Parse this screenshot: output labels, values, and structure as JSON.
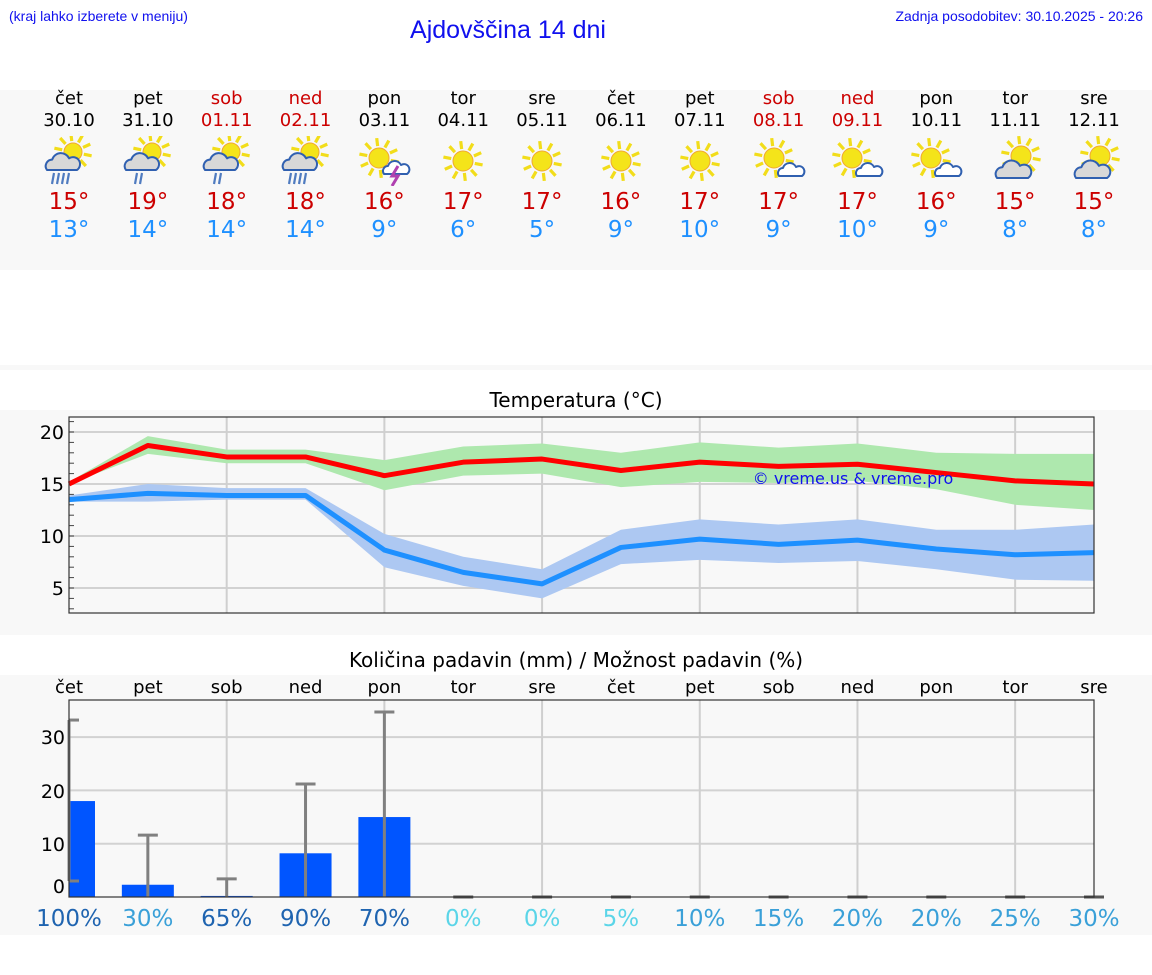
{
  "header": {
    "hint": "(kraj lahko izberete v meniju)",
    "title": "Ajdovščina 14 dni",
    "updated": "Zadnja posodobitev: 30.10.2025 - 20:26"
  },
  "days": [
    {
      "name": "čet",
      "date": "30.10",
      "weekend": false,
      "icon": "partly-sunny-heavy-rain-icon",
      "max": "15°",
      "min": "13°"
    },
    {
      "name": "pet",
      "date": "31.10",
      "weekend": false,
      "icon": "partly-sunny-light-rain-icon",
      "max": "19°",
      "min": "14°"
    },
    {
      "name": "sob",
      "date": "01.11",
      "weekend": true,
      "icon": "partly-sunny-light-rain-icon",
      "max": "18°",
      "min": "14°"
    },
    {
      "name": "ned",
      "date": "02.11",
      "weekend": true,
      "icon": "partly-sunny-heavy-rain-icon",
      "max": "18°",
      "min": "14°"
    },
    {
      "name": "pon",
      "date": "03.11",
      "weekend": false,
      "icon": "sun-thunderstorm-icon",
      "max": "16°",
      "min": "9°"
    },
    {
      "name": "tor",
      "date": "04.11",
      "weekend": false,
      "icon": "sun-icon",
      "max": "17°",
      "min": "6°"
    },
    {
      "name": "sre",
      "date": "05.11",
      "weekend": false,
      "icon": "sun-icon",
      "max": "17°",
      "min": "5°"
    },
    {
      "name": "čet",
      "date": "06.11",
      "weekend": false,
      "icon": "sun-icon",
      "max": "16°",
      "min": "9°"
    },
    {
      "name": "pet",
      "date": "07.11",
      "weekend": false,
      "icon": "sun-icon",
      "max": "17°",
      "min": "10°"
    },
    {
      "name": "sob",
      "date": "08.11",
      "weekend": true,
      "icon": "sun-small-cloud-icon",
      "max": "17°",
      "min": "9°"
    },
    {
      "name": "ned",
      "date": "09.11",
      "weekend": true,
      "icon": "sun-small-cloud-icon",
      "max": "17°",
      "min": "10°"
    },
    {
      "name": "pon",
      "date": "10.11",
      "weekend": false,
      "icon": "sun-small-cloud-icon",
      "max": "16°",
      "min": "9°"
    },
    {
      "name": "tor",
      "date": "11.11",
      "weekend": false,
      "icon": "partly-cloudy-icon",
      "max": "15°",
      "min": "8°"
    },
    {
      "name": "sre",
      "date": "12.11",
      "weekend": false,
      "icon": "partly-cloudy-icon",
      "max": "15°",
      "min": "8°"
    }
  ],
  "colors": {
    "link_blue": "#1010ee",
    "max_line": "#ff0000",
    "max_band": "#aee8ae",
    "min_line": "#1e90ff",
    "min_band": "#adc8f2",
    "bar": "#0055ff",
    "whisker": "#808080",
    "weekend": "#cc0000"
  },
  "chart_data": [
    {
      "type": "line",
      "title": "Temperatura (°C)",
      "xlabel": "",
      "ylabel": "",
      "categories": [
        "30.10",
        "31.10",
        "01.11",
        "02.11",
        "03.11",
        "04.11",
        "05.11",
        "06.11",
        "07.11",
        "08.11",
        "09.11",
        "10.11",
        "11.11",
        "12.11"
      ],
      "yticks": [
        "20",
        "15",
        "10",
        "5"
      ],
      "ylim": [
        2.5,
        21.5
      ],
      "grid": true,
      "series": [
        {
          "name": "max",
          "values": [
            15.0,
            18.7,
            17.6,
            17.6,
            15.8,
            17.1,
            17.4,
            16.3,
            17.1,
            16.7,
            16.9,
            16.1,
            15.3,
            15.0
          ],
          "band_low": [
            15.0,
            17.9,
            17.0,
            17.0,
            14.4,
            15.8,
            16.0,
            14.7,
            15.2,
            15.1,
            15.3,
            14.5,
            13.0,
            12.5
          ],
          "band_high": [
            15.2,
            19.6,
            18.3,
            18.3,
            17.3,
            18.6,
            18.9,
            18.0,
            19.0,
            18.5,
            18.9,
            18.0,
            17.9,
            17.9
          ]
        },
        {
          "name": "min",
          "values": [
            13.5,
            14.1,
            13.9,
            13.9,
            8.65,
            6.5,
            5.4,
            8.9,
            9.7,
            9.2,
            9.6,
            8.75,
            8.2,
            8.4
          ],
          "band_low": [
            13.3,
            13.3,
            13.5,
            13.5,
            7.0,
            5.2,
            4.0,
            7.3,
            7.7,
            7.4,
            7.6,
            6.8,
            5.8,
            5.7
          ],
          "band_high": [
            13.9,
            15.0,
            14.6,
            14.6,
            10.2,
            8.0,
            6.8,
            10.6,
            11.6,
            11.1,
            11.6,
            10.6,
            10.6,
            11.1
          ]
        }
      ],
      "annotation": "© vreme.us & vreme.pro"
    },
    {
      "type": "bar",
      "title": "Količina padavin (mm) / Možnost padavin (%)",
      "categories": [
        "čet",
        "pet",
        "sob",
        "ned",
        "pon",
        "tor",
        "sre",
        "čet",
        "pet",
        "sob",
        "ned",
        "pon",
        "tor",
        "sre"
      ],
      "yticks": [
        "30",
        "20",
        "10",
        "0"
      ],
      "ylim": [
        0,
        37
      ],
      "grid": true,
      "series": [
        {
          "name": "precipitation_mm",
          "values": [
            18.0,
            2.3,
            0.2,
            8.2,
            15.0,
            0,
            0,
            0,
            0,
            0,
            0,
            0,
            0,
            0
          ]
        },
        {
          "name": "precipitation_max_mm",
          "values": [
            33.2,
            11.6,
            3.4,
            21.2,
            34.7,
            0,
            0,
            0,
            0,
            0,
            0,
            0,
            0,
            0
          ]
        },
        {
          "name": "precipitation_min_mm",
          "values": [
            3.0,
            0,
            0,
            0,
            0,
            0,
            0,
            0,
            0,
            0,
            0,
            0,
            0,
            0
          ]
        }
      ],
      "probability_labels": [
        "100%",
        "30%",
        "65%",
        "90%",
        "70%",
        "0%",
        "0%",
        "5%",
        "10%",
        "15%",
        "20%",
        "20%",
        "25%",
        "30%"
      ],
      "probability_colors": [
        "#1f64b0",
        "#3aa0d8",
        "#1f64b0",
        "#1f64b0",
        "#1f64b0",
        "#5bd5e8",
        "#5bd5e8",
        "#5bd5e8",
        "#3aa0d8",
        "#3aa0d8",
        "#3aa0d8",
        "#3aa0d8",
        "#3aa0d8",
        "#3aa0d8"
      ]
    }
  ]
}
